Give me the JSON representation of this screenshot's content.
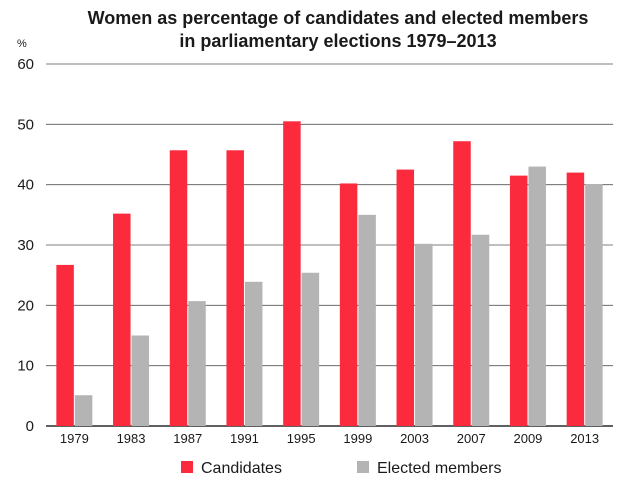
{
  "chart_data": {
    "type": "bar",
    "title_line1": "Women as percentage of candidates and elected members",
    "title_line2": "in parliamentary elections 1979–2013",
    "xlabel": "",
    "ylabel": "%",
    "ylim": [
      0,
      60
    ],
    "yticks": [
      0,
      10,
      20,
      30,
      40,
      50,
      60
    ],
    "grid": true,
    "legend_position": "bottom",
    "categories": [
      "1979",
      "1983",
      "1987",
      "1991",
      "1995",
      "1999",
      "2003",
      "2007",
      "2009",
      "2013"
    ],
    "series": [
      {
        "name": "Candidates",
        "color": "#fb2a3c",
        "values": [
          26.7,
          35.2,
          45.7,
          45.7,
          50.5,
          40.2,
          42.5,
          47.2,
          41.5,
          42.0
        ]
      },
      {
        "name": "Elected members",
        "color": "#b4b4b4",
        "values": [
          5.1,
          15.0,
          20.7,
          23.9,
          25.4,
          35.0,
          30.2,
          31.7,
          43.0,
          40.1
        ]
      }
    ]
  }
}
